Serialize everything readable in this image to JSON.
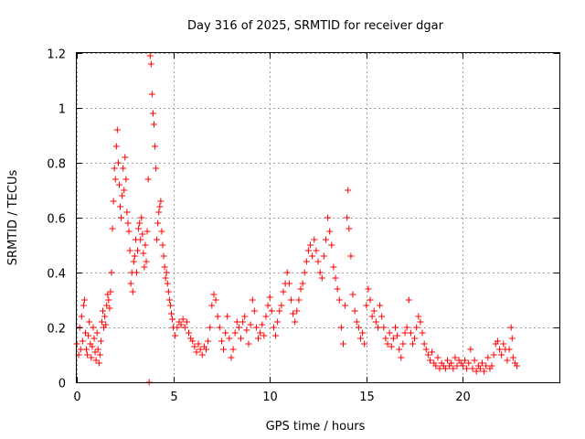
{
  "chart_data": {
    "type": "scatter",
    "title": "Day 316 of 2025, SRMTID for receiver dgar",
    "xlabel": "GPS time / hours",
    "ylabel": "SRMTID / TECUs",
    "xlim": [
      0,
      25
    ],
    "ylim": [
      0,
      1.2
    ],
    "x_ticks": [
      0,
      5,
      10,
      15,
      20
    ],
    "x_tick_labels": [
      "0",
      "5",
      "10",
      "15",
      "20"
    ],
    "y_ticks": [
      0,
      0.2,
      0.4,
      0.6,
      0.8,
      1.0,
      1.2
    ],
    "y_tick_labels": [
      "0",
      "0.2",
      "0.4",
      "0.6",
      "0.8",
      "1",
      "1.2"
    ],
    "grid": true,
    "legend": "none",
    "marker": "plus",
    "color": "#ff0000",
    "series": [
      {
        "name": "SRMTID",
        "points": [
          [
            0.0,
            0.14
          ],
          [
            0.1,
            0.1
          ],
          [
            0.15,
            0.2
          ],
          [
            0.2,
            0.12
          ],
          [
            0.25,
            0.24
          ],
          [
            0.3,
            0.15
          ],
          [
            0.35,
            0.28
          ],
          [
            0.4,
            0.3
          ],
          [
            0.45,
            0.18
          ],
          [
            0.5,
            0.12
          ],
          [
            0.55,
            0.1
          ],
          [
            0.6,
            0.17
          ],
          [
            0.65,
            0.22
          ],
          [
            0.7,
            0.14
          ],
          [
            0.75,
            0.09
          ],
          [
            0.8,
            0.13
          ],
          [
            0.85,
            0.2
          ],
          [
            0.9,
            0.16
          ],
          [
            0.95,
            0.11
          ],
          [
            1.0,
            0.08
          ],
          [
            1.05,
            0.18
          ],
          [
            1.1,
            0.12
          ],
          [
            1.15,
            0.07
          ],
          [
            1.2,
            0.1
          ],
          [
            1.25,
            0.15
          ],
          [
            1.3,
            0.22
          ],
          [
            1.35,
            0.26
          ],
          [
            1.4,
            0.2
          ],
          [
            1.45,
            0.24
          ],
          [
            1.5,
            0.21
          ],
          [
            1.55,
            0.28
          ],
          [
            1.6,
            0.32
          ],
          [
            1.65,
            0.3
          ],
          [
            1.7,
            0.27
          ],
          [
            1.75,
            0.33
          ],
          [
            1.8,
            0.4
          ],
          [
            1.85,
            0.56
          ],
          [
            1.9,
            0.66
          ],
          [
            1.95,
            0.78
          ],
          [
            2.0,
            0.74
          ],
          [
            2.05,
            0.86
          ],
          [
            2.1,
            0.92
          ],
          [
            2.15,
            0.8
          ],
          [
            2.2,
            0.72
          ],
          [
            2.25,
            0.64
          ],
          [
            2.3,
            0.6
          ],
          [
            2.35,
            0.68
          ],
          [
            2.4,
            0.78
          ],
          [
            2.45,
            0.7
          ],
          [
            2.5,
            0.82
          ],
          [
            2.55,
            0.74
          ],
          [
            2.6,
            0.62
          ],
          [
            2.65,
            0.58
          ],
          [
            2.7,
            0.55
          ],
          [
            2.75,
            0.48
          ],
          [
            2.8,
            0.36
          ],
          [
            2.85,
            0.4
          ],
          [
            2.9,
            0.33
          ],
          [
            2.95,
            0.44
          ],
          [
            3.0,
            0.46
          ],
          [
            3.05,
            0.52
          ],
          [
            3.1,
            0.4
          ],
          [
            3.15,
            0.48
          ],
          [
            3.2,
            0.56
          ],
          [
            3.25,
            0.58
          ],
          [
            3.3,
            0.52
          ],
          [
            3.35,
            0.6
          ],
          [
            3.4,
            0.54
          ],
          [
            3.45,
            0.47
          ],
          [
            3.5,
            0.42
          ],
          [
            3.55,
            0.5
          ],
          [
            3.6,
            0.44
          ],
          [
            3.65,
            0.55
          ],
          [
            3.7,
            0.74
          ],
          [
            3.75,
            0.0
          ],
          [
            3.8,
            1.19
          ],
          [
            3.85,
            1.16
          ],
          [
            3.9,
            1.05
          ],
          [
            3.95,
            0.98
          ],
          [
            4.0,
            0.94
          ],
          [
            4.05,
            0.86
          ],
          [
            4.1,
            0.78
          ],
          [
            4.15,
            0.52
          ],
          [
            4.2,
            0.58
          ],
          [
            4.25,
            0.62
          ],
          [
            4.3,
            0.64
          ],
          [
            4.35,
            0.66
          ],
          [
            4.4,
            0.55
          ],
          [
            4.45,
            0.5
          ],
          [
            4.5,
            0.46
          ],
          [
            4.55,
            0.42
          ],
          [
            4.6,
            0.38
          ],
          [
            4.65,
            0.4
          ],
          [
            4.7,
            0.36
          ],
          [
            4.75,
            0.33
          ],
          [
            4.8,
            0.3
          ],
          [
            4.85,
            0.28
          ],
          [
            4.9,
            0.25
          ],
          [
            4.95,
            0.23
          ],
          [
            5.0,
            0.2
          ],
          [
            5.1,
            0.17
          ],
          [
            5.2,
            0.2
          ],
          [
            5.3,
            0.22
          ],
          [
            5.4,
            0.21
          ],
          [
            5.5,
            0.23
          ],
          [
            5.6,
            0.2
          ],
          [
            5.7,
            0.22
          ],
          [
            5.8,
            0.18
          ],
          [
            5.9,
            0.16
          ],
          [
            6.0,
            0.15
          ],
          [
            6.1,
            0.13
          ],
          [
            6.2,
            0.11
          ],
          [
            6.3,
            0.14
          ],
          [
            6.4,
            0.12
          ],
          [
            6.5,
            0.1
          ],
          [
            6.6,
            0.13
          ],
          [
            6.7,
            0.12
          ],
          [
            6.8,
            0.15
          ],
          [
            6.9,
            0.2
          ],
          [
            7.0,
            0.28
          ],
          [
            7.1,
            0.32
          ],
          [
            7.2,
            0.3
          ],
          [
            7.3,
            0.24
          ],
          [
            7.4,
            0.2
          ],
          [
            7.5,
            0.15
          ],
          [
            7.6,
            0.12
          ],
          [
            7.7,
            0.18
          ],
          [
            7.8,
            0.24
          ],
          [
            7.9,
            0.16
          ],
          [
            8.0,
            0.09
          ],
          [
            8.1,
            0.12
          ],
          [
            8.2,
            0.18
          ],
          [
            8.3,
            0.22
          ],
          [
            8.4,
            0.2
          ],
          [
            8.5,
            0.16
          ],
          [
            8.6,
            0.22
          ],
          [
            8.7,
            0.24
          ],
          [
            8.8,
            0.19
          ],
          [
            8.9,
            0.14
          ],
          [
            9.0,
            0.21
          ],
          [
            9.1,
            0.3
          ],
          [
            9.2,
            0.26
          ],
          [
            9.3,
            0.2
          ],
          [
            9.4,
            0.16
          ],
          [
            9.5,
            0.18
          ],
          [
            9.6,
            0.21
          ],
          [
            9.7,
            0.17
          ],
          [
            9.8,
            0.24
          ],
          [
            9.9,
            0.28
          ],
          [
            10.0,
            0.31
          ],
          [
            10.1,
            0.26
          ],
          [
            10.2,
            0.2
          ],
          [
            10.3,
            0.17
          ],
          [
            10.4,
            0.22
          ],
          [
            10.5,
            0.26
          ],
          [
            10.6,
            0.28
          ],
          [
            10.7,
            0.33
          ],
          [
            10.8,
            0.36
          ],
          [
            10.9,
            0.4
          ],
          [
            11.0,
            0.36
          ],
          [
            11.1,
            0.3
          ],
          [
            11.2,
            0.25
          ],
          [
            11.3,
            0.22
          ],
          [
            11.4,
            0.26
          ],
          [
            11.5,
            0.3
          ],
          [
            11.6,
            0.34
          ],
          [
            11.7,
            0.36
          ],
          [
            11.8,
            0.4
          ],
          [
            11.9,
            0.44
          ],
          [
            12.0,
            0.48
          ],
          [
            12.1,
            0.5
          ],
          [
            12.2,
            0.46
          ],
          [
            12.3,
            0.52
          ],
          [
            12.4,
            0.48
          ],
          [
            12.5,
            0.44
          ],
          [
            12.6,
            0.4
          ],
          [
            12.7,
            0.38
          ],
          [
            12.8,
            0.46
          ],
          [
            12.9,
            0.52
          ],
          [
            13.0,
            0.6
          ],
          [
            13.1,
            0.55
          ],
          [
            13.2,
            0.5
          ],
          [
            13.3,
            0.42
          ],
          [
            13.4,
            0.38
          ],
          [
            13.5,
            0.34
          ],
          [
            13.6,
            0.3
          ],
          [
            13.7,
            0.2
          ],
          [
            13.8,
            0.14
          ],
          [
            13.9,
            0.28
          ],
          [
            14.0,
            0.6
          ],
          [
            14.05,
            0.7
          ],
          [
            14.1,
            0.56
          ],
          [
            14.2,
            0.46
          ],
          [
            14.3,
            0.32
          ],
          [
            14.4,
            0.26
          ],
          [
            14.5,
            0.22
          ],
          [
            14.6,
            0.2
          ],
          [
            14.7,
            0.16
          ],
          [
            14.8,
            0.18
          ],
          [
            14.9,
            0.14
          ],
          [
            15.0,
            0.28
          ],
          [
            15.1,
            0.34
          ],
          [
            15.2,
            0.3
          ],
          [
            15.3,
            0.24
          ],
          [
            15.4,
            0.26
          ],
          [
            15.5,
            0.22
          ],
          [
            15.6,
            0.2
          ],
          [
            15.7,
            0.28
          ],
          [
            15.8,
            0.24
          ],
          [
            15.9,
            0.2
          ],
          [
            16.0,
            0.16
          ],
          [
            16.1,
            0.14
          ],
          [
            16.2,
            0.18
          ],
          [
            16.3,
            0.13
          ],
          [
            16.4,
            0.16
          ],
          [
            16.5,
            0.2
          ],
          [
            16.6,
            0.17
          ],
          [
            16.7,
            0.12
          ],
          [
            16.8,
            0.09
          ],
          [
            16.9,
            0.14
          ],
          [
            17.0,
            0.18
          ],
          [
            17.1,
            0.2
          ],
          [
            17.2,
            0.3
          ],
          [
            17.3,
            0.18
          ],
          [
            17.4,
            0.14
          ],
          [
            17.5,
            0.16
          ],
          [
            17.6,
            0.2
          ],
          [
            17.7,
            0.24
          ],
          [
            17.8,
            0.22
          ],
          [
            17.9,
            0.18
          ],
          [
            18.0,
            0.14
          ],
          [
            18.1,
            0.12
          ],
          [
            18.2,
            0.1
          ],
          [
            18.3,
            0.08
          ],
          [
            18.4,
            0.11
          ],
          [
            18.5,
            0.07
          ],
          [
            18.6,
            0.06
          ],
          [
            18.7,
            0.09
          ],
          [
            18.8,
            0.05
          ],
          [
            18.9,
            0.07
          ],
          [
            19.0,
            0.06
          ],
          [
            19.1,
            0.05
          ],
          [
            19.2,
            0.08
          ],
          [
            19.3,
            0.06
          ],
          [
            19.4,
            0.07
          ],
          [
            19.5,
            0.05
          ],
          [
            19.6,
            0.09
          ],
          [
            19.7,
            0.06
          ],
          [
            19.8,
            0.08
          ],
          [
            19.9,
            0.07
          ],
          [
            20.0,
            0.06
          ],
          [
            20.1,
            0.08
          ],
          [
            20.2,
            0.05
          ],
          [
            20.3,
            0.07
          ],
          [
            20.4,
            0.12
          ],
          [
            20.5,
            0.05
          ],
          [
            20.6,
            0.08
          ],
          [
            20.7,
            0.04
          ],
          [
            20.8,
            0.06
          ],
          [
            20.9,
            0.05
          ],
          [
            21.0,
            0.07
          ],
          [
            21.1,
            0.04
          ],
          [
            21.2,
            0.06
          ],
          [
            21.3,
            0.09
          ],
          [
            21.4,
            0.05
          ],
          [
            21.5,
            0.06
          ],
          [
            21.6,
            0.1
          ],
          [
            21.7,
            0.14
          ],
          [
            21.8,
            0.15
          ],
          [
            21.9,
            0.12
          ],
          [
            22.0,
            0.1
          ],
          [
            22.1,
            0.14
          ],
          [
            22.2,
            0.12
          ],
          [
            22.3,
            0.08
          ],
          [
            22.4,
            0.12
          ],
          [
            22.5,
            0.2
          ],
          [
            22.55,
            0.16
          ],
          [
            22.6,
            0.09
          ],
          [
            22.7,
            0.07
          ],
          [
            22.8,
            0.06
          ]
        ]
      }
    ]
  }
}
